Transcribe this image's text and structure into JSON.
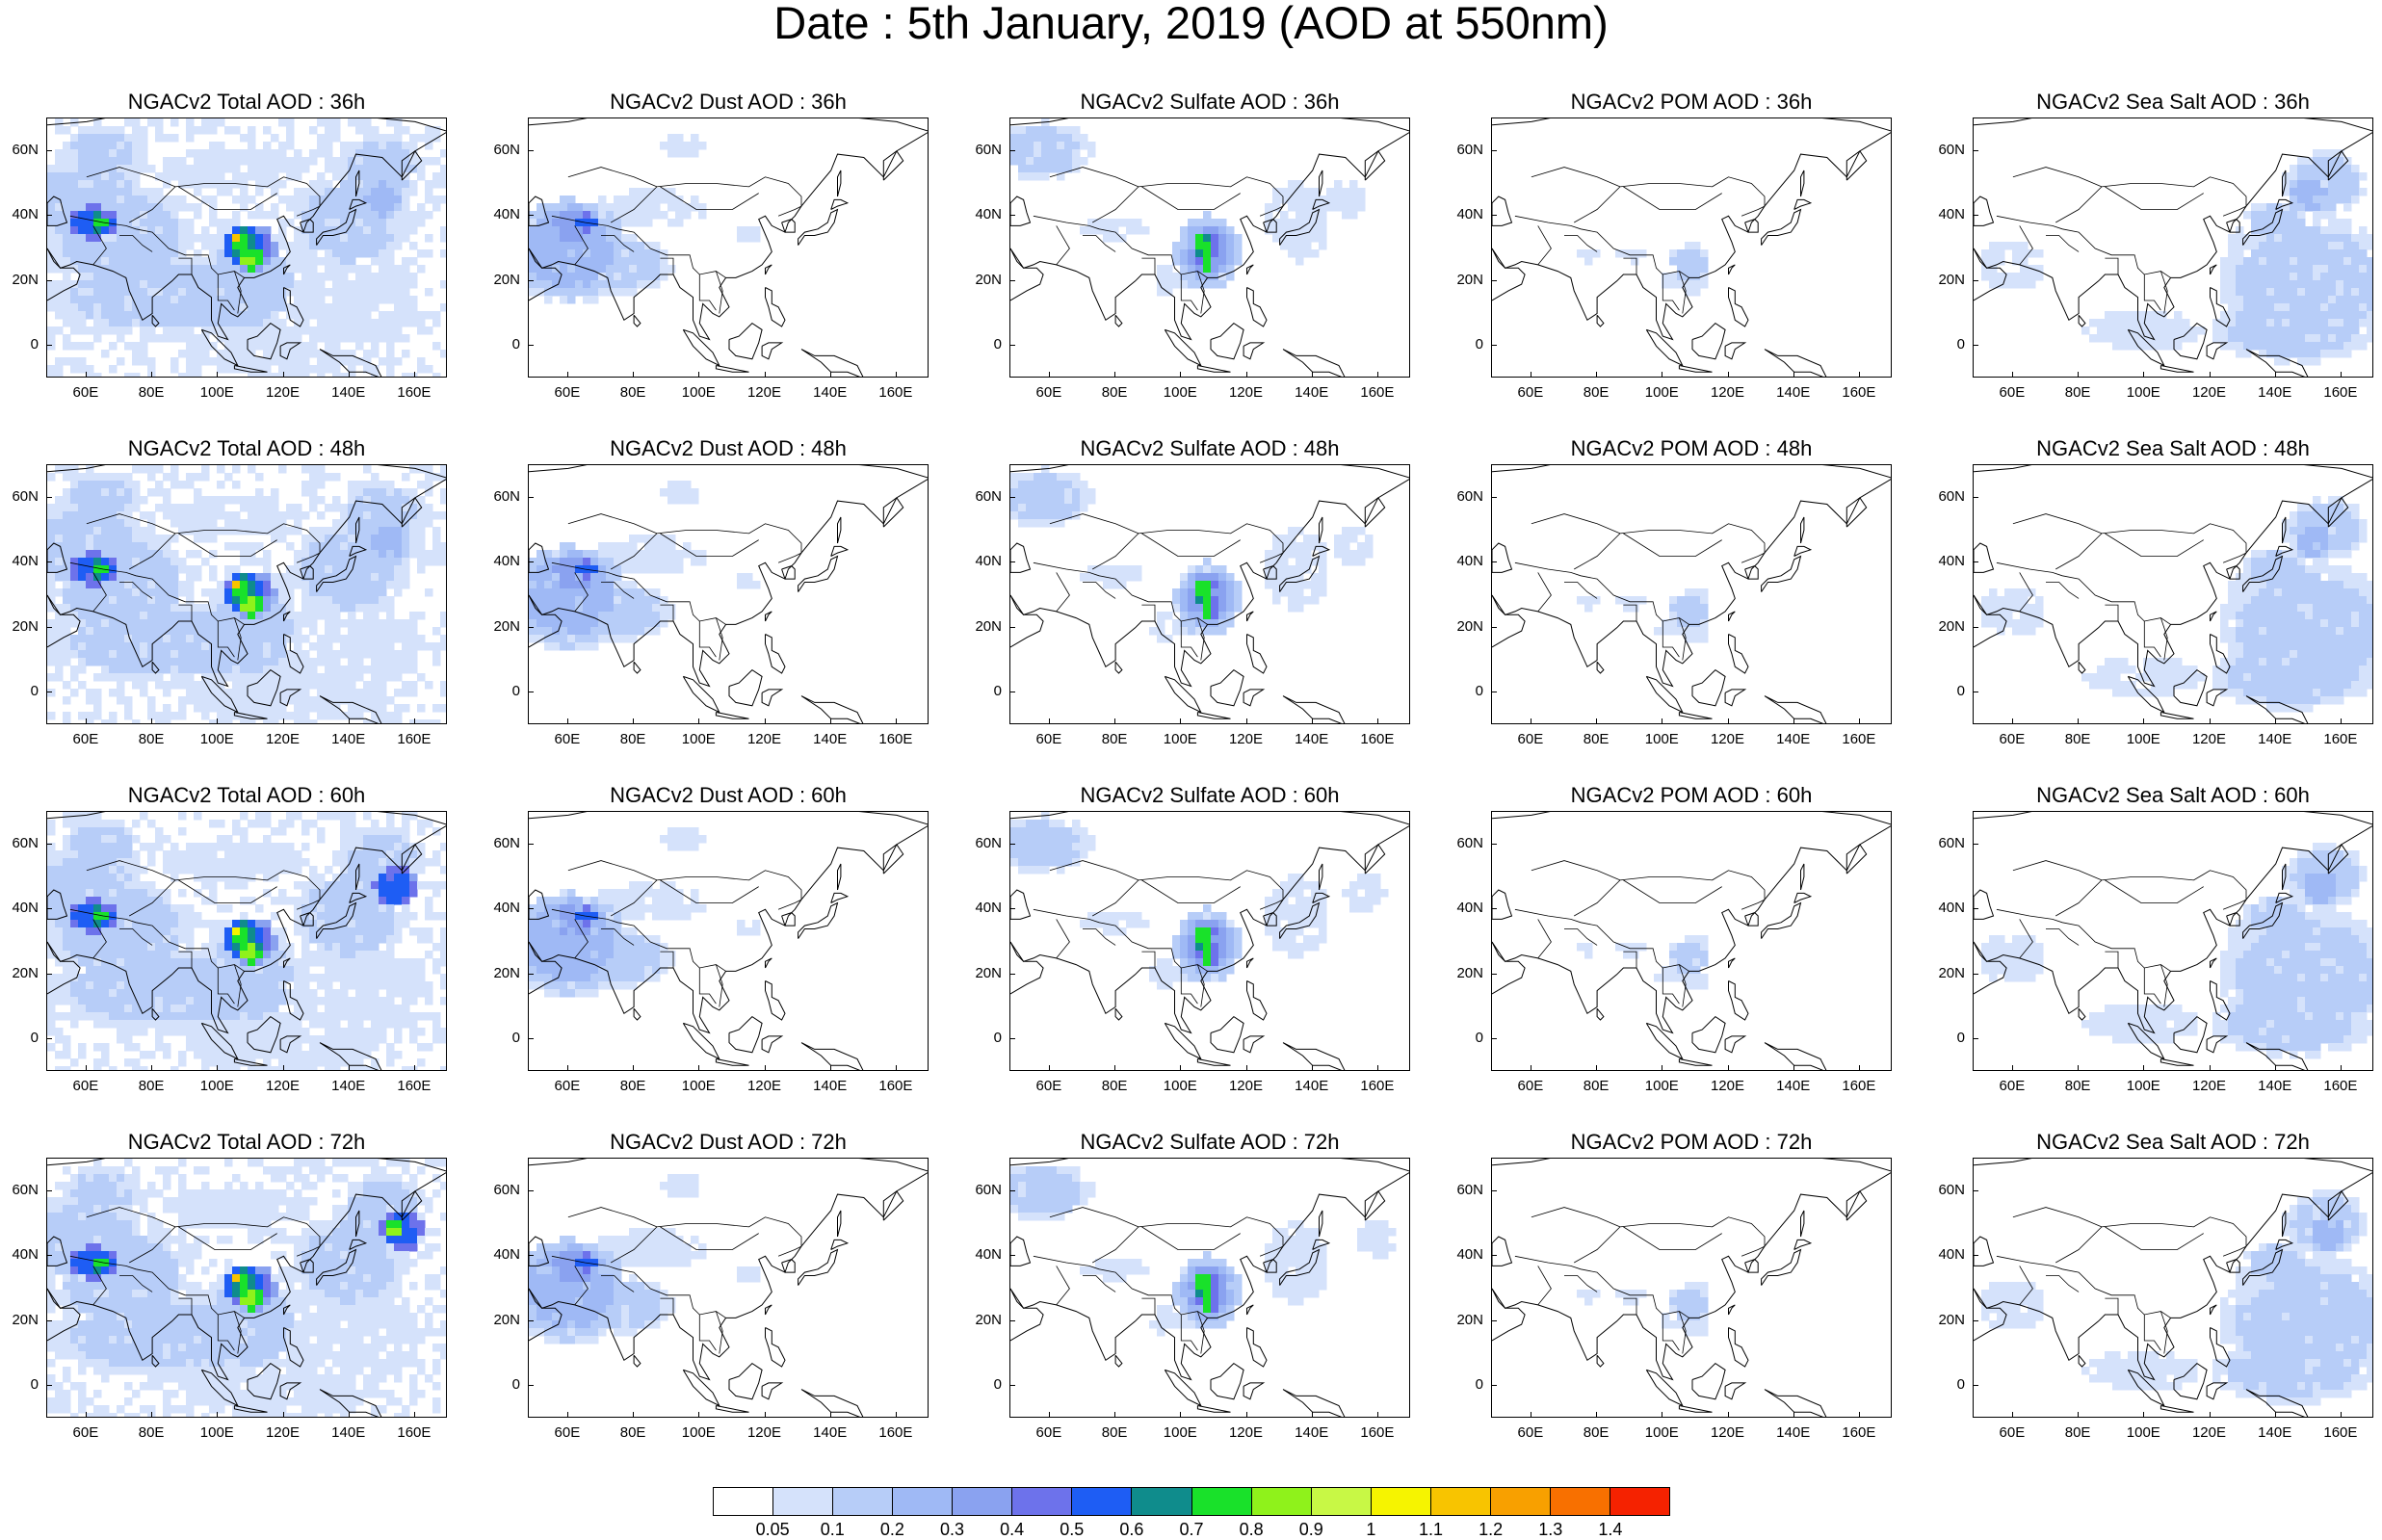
{
  "title": "Date : 5th January, 2019 (AOD at 550nm)",
  "map": {
    "ylabels": [
      "60N",
      "40N",
      "20N",
      "0"
    ],
    "xlabels": [
      "60E",
      "80E",
      "100E",
      "120E",
      "140E",
      "160E"
    ],
    "lat_range": [
      -10,
      70
    ],
    "lon_range": [
      48,
      170
    ]
  },
  "panels": [
    [
      {
        "title": "NGACv2 Total AOD : 36h",
        "species": "total",
        "hour": "36h"
      },
      {
        "title": "NGACv2 Dust AOD : 36h",
        "species": "dust",
        "hour": "36h"
      },
      {
        "title": "NGACv2 Sulfate AOD : 36h",
        "species": "sulfate",
        "hour": "36h"
      },
      {
        "title": "NGACv2 POM AOD : 36h",
        "species": "pom",
        "hour": "36h"
      },
      {
        "title": "NGACv2 Sea Salt AOD : 36h",
        "species": "seasalt",
        "hour": "36h"
      }
    ],
    [
      {
        "title": "NGACv2 Total AOD : 48h",
        "species": "total",
        "hour": "48h"
      },
      {
        "title": "NGACv2 Dust AOD : 48h",
        "species": "dust",
        "hour": "48h"
      },
      {
        "title": "NGACv2 Sulfate AOD : 48h",
        "species": "sulfate",
        "hour": "48h"
      },
      {
        "title": "NGACv2 POM AOD : 48h",
        "species": "pom",
        "hour": "48h"
      },
      {
        "title": "NGACv2 Sea Salt AOD : 48h",
        "species": "seasalt",
        "hour": "48h"
      }
    ],
    [
      {
        "title": "NGACv2 Total AOD : 60h",
        "species": "total",
        "hour": "60h"
      },
      {
        "title": "NGACv2 Dust AOD : 60h",
        "species": "dust",
        "hour": "60h"
      },
      {
        "title": "NGACv2 Sulfate AOD : 60h",
        "species": "sulfate",
        "hour": "60h"
      },
      {
        "title": "NGACv2 POM AOD : 60h",
        "species": "pom",
        "hour": "60h"
      },
      {
        "title": "NGACv2 Sea Salt AOD : 60h",
        "species": "seasalt",
        "hour": "60h"
      }
    ],
    [
      {
        "title": "NGACv2 Total AOD : 72h",
        "species": "total",
        "hour": "72h"
      },
      {
        "title": "NGACv2 Dust AOD : 72h",
        "species": "dust",
        "hour": "72h"
      },
      {
        "title": "NGACv2 Sulfate AOD : 72h",
        "species": "sulfate",
        "hour": "72h"
      },
      {
        "title": "NGACv2 POM AOD : 72h",
        "species": "pom",
        "hour": "72h"
      },
      {
        "title": "NGACv2 Sea Salt  AOD : 72h",
        "species": "seasalt",
        "hour": "72h"
      }
    ]
  ],
  "colorbar": {
    "labels": [
      "0.05",
      "0.1",
      "0.2",
      "0.3",
      "0.4",
      "0.5",
      "0.6",
      "0.7",
      "0.8",
      "0.9",
      "1",
      "1.1",
      "1.2",
      "1.3",
      "1.4"
    ],
    "colors": [
      "#ffffff",
      "#d5e2fb",
      "#b7cdf8",
      "#9fb9f5",
      "#8aa2f0",
      "#6d72eb",
      "#1e5df4",
      "#0f8c8c",
      "#19e12a",
      "#8ff21b",
      "#c8f845",
      "#f6f400",
      "#f8c400",
      "#f8a000",
      "#f87000",
      "#f52200"
    ]
  }
}
